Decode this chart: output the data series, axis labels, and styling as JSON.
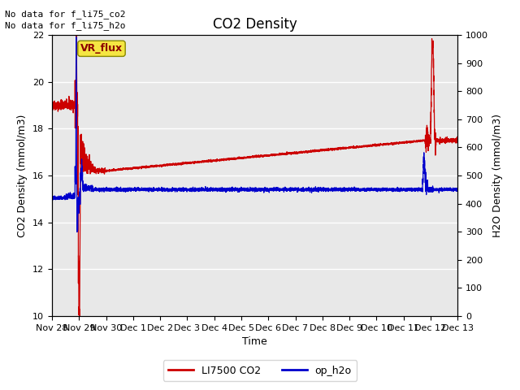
{
  "title": "CO2 Density",
  "xlabel": "Time",
  "ylabel_left": "CO2 Density (mmol/m3)",
  "ylabel_right": "H2O Density (mmol/m3)",
  "ylim_left": [
    10,
    22
  ],
  "ylim_right": [
    0,
    1000
  ],
  "yticks_left": [
    10,
    12,
    14,
    16,
    18,
    20,
    22
  ],
  "yticks_right": [
    0,
    100,
    200,
    300,
    400,
    500,
    600,
    700,
    800,
    900,
    1000
  ],
  "bg_color": "#e8e8e8",
  "fig_bg_color": "#ffffff",
  "text_no_data_1": "No data for f_li75_co2",
  "text_no_data_2": "No data for f_li75_h2o",
  "vr_flux_label": "VR_flux",
  "legend_entries": [
    "LI7500 CO2",
    "op_h2o"
  ],
  "co2_color": "#cc0000",
  "h2o_color": "#0000cc",
  "tick_labels": [
    "Nov 28",
    "Nov 29",
    "Nov 30",
    "Dec 1",
    "Dec 2",
    "Dec 3",
    "Dec 4",
    "Dec 5",
    "Dec 6",
    "Dec 7",
    "Dec 8",
    "Dec 9",
    "Dec 10",
    "Dec 11",
    "Dec 12",
    "Dec 13"
  ],
  "xlim": [
    0,
    15
  ]
}
